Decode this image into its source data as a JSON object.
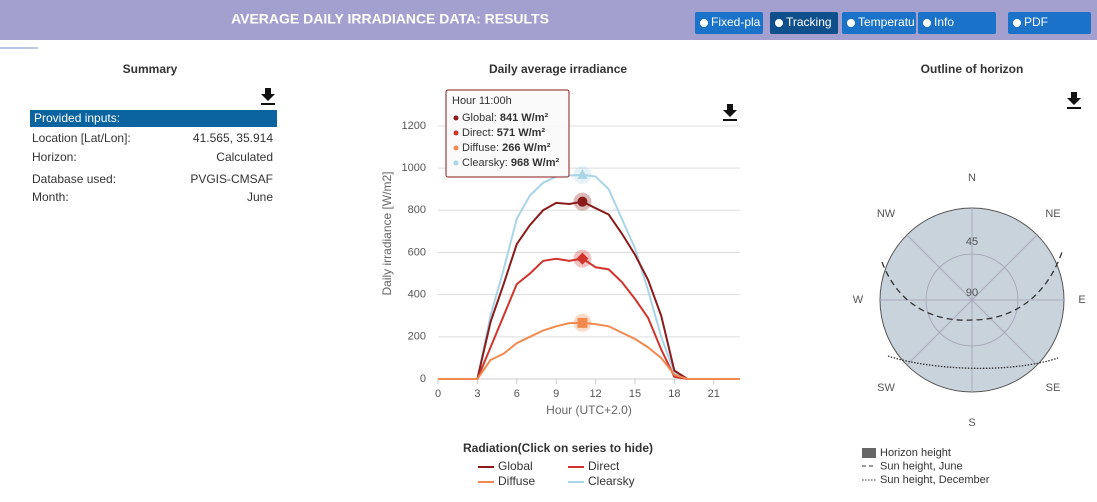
{
  "header": {
    "title": "AVERAGE DAILY IRRADIANCE DATA: RESULTS",
    "buttons": [
      "Fixed-plane",
      "Tracking",
      "Temperature",
      "Info",
      "PDF"
    ]
  },
  "summary": {
    "title": "Summary",
    "table_header": "Provided inputs:",
    "rows": [
      [
        "Location [Lat/Lon]:",
        "41.565, 35.914"
      ],
      [
        "Horizon:",
        "Calculated"
      ],
      [
        "Database used:",
        "PVGIS-CMSAF"
      ],
      [
        "Month:",
        "June"
      ]
    ]
  },
  "chart_data": {
    "type": "line",
    "title": "Daily average irradiance",
    "y_label": "Daily irradiance [W/m2]",
    "x_label": "Hour (UTC+2.0)",
    "x": [
      0,
      1,
      2,
      3,
      4,
      5,
      6,
      7,
      8,
      9,
      10,
      11,
      12,
      13,
      14,
      15,
      16,
      17,
      18,
      19,
      20,
      21,
      22,
      23
    ],
    "xlim": [
      0,
      23
    ],
    "xticks": [
      0,
      3,
      6,
      9,
      12,
      15,
      18,
      21
    ],
    "ylim": [
      0,
      1380
    ],
    "yticks": [
      0,
      200,
      400,
      600,
      800,
      1000,
      1200
    ],
    "grid": true,
    "series": [
      {
        "name": "Global",
        "color": "#8b1a1a",
        "values": [
          0,
          0,
          0,
          0,
          270,
          450,
          640,
          730,
          800,
          835,
          830,
          841,
          810,
          780,
          690,
          590,
          470,
          300,
          40,
          0,
          0,
          0,
          0,
          0
        ]
      },
      {
        "name": "Direct",
        "color": "#d0342c",
        "values": [
          0,
          0,
          0,
          0,
          150,
          300,
          450,
          500,
          560,
          570,
          560,
          571,
          530,
          520,
          460,
          380,
          290,
          140,
          10,
          0,
          0,
          0,
          0,
          0
        ]
      },
      {
        "name": "Diffuse",
        "color": "#f28a50",
        "values": [
          0,
          0,
          0,
          0,
          90,
          120,
          170,
          200,
          230,
          250,
          265,
          266,
          260,
          250,
          220,
          190,
          150,
          100,
          20,
          0,
          0,
          0,
          0,
          0
        ]
      },
      {
        "name": "Clearsky",
        "color": "#a8d4e6",
        "values": [
          0,
          0,
          0,
          0,
          300,
          520,
          760,
          870,
          930,
          960,
          965,
          968,
          960,
          900,
          760,
          620,
          420,
          200,
          30,
          0,
          0,
          0,
          0,
          0
        ]
      }
    ],
    "tooltip": {
      "title": "Hour 11:00h",
      "items": [
        [
          "Global:",
          "841 W/m²"
        ],
        [
          "Direct:",
          "571 W/m²"
        ],
        [
          "Diffuse:",
          "266 W/m²"
        ],
        [
          "Clearsky:",
          "968 W/m²"
        ]
      ]
    },
    "legend_title": "Radiation(Click on series to hide)"
  },
  "horizon": {
    "title": "Outline of horizon",
    "directions": [
      "N",
      "NE",
      "E",
      "SE",
      "S",
      "SW",
      "W",
      "NW"
    ],
    "rings": [
      "45",
      "90"
    ],
    "legend": [
      "Horizon height",
      "Sun height, June",
      "Sun height, December"
    ]
  }
}
